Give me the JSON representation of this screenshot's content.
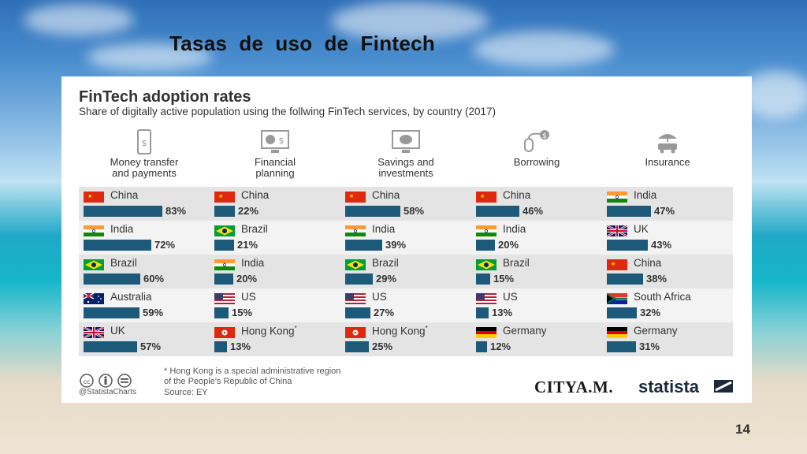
{
  "slide": {
    "title": "Tasas  de  uso  de  Fintech",
    "page_number": "14"
  },
  "chart_data": {
    "type": "bar",
    "title": "FinTech adoption rates",
    "subtitle": "Share of digitally active population using the follwing FinTech services, by country (2017)",
    "categories_by_panel": true,
    "panels": [
      {
        "name": "Money transfer\nand payments",
        "icon": "phone-payment-icon",
        "entries": [
          {
            "country": "China",
            "value": 83,
            "label": "83%"
          },
          {
            "country": "India",
            "value": 72,
            "label": "72%"
          },
          {
            "country": "Brazil",
            "value": 60,
            "label": "60%"
          },
          {
            "country": "Australia",
            "value": 59,
            "label": "59%"
          },
          {
            "country": "UK",
            "value": 57,
            "label": "57%"
          }
        ]
      },
      {
        "name": "Financial\nplanning",
        "icon": "chart-screen-icon",
        "entries": [
          {
            "country": "China",
            "value": 22,
            "label": "22%"
          },
          {
            "country": "Brazil",
            "value": 21,
            "label": "21%"
          },
          {
            "country": "India",
            "value": 20,
            "label": "20%"
          },
          {
            "country": "US",
            "value": 15,
            "label": "15%"
          },
          {
            "country": "Hong Kong",
            "value": 13,
            "label": "13%",
            "marker": "*"
          }
        ]
      },
      {
        "name": "Savings and\ninvestments",
        "icon": "piggy-bank-icon",
        "entries": [
          {
            "country": "China",
            "value": 58,
            "label": "58%"
          },
          {
            "country": "India",
            "value": 39,
            "label": "39%"
          },
          {
            "country": "Brazil",
            "value": 29,
            "label": "29%"
          },
          {
            "country": "US",
            "value": 27,
            "label": "27%"
          },
          {
            "country": "Hong Kong",
            "value": 25,
            "label": "25%",
            "marker": "*"
          }
        ]
      },
      {
        "name": "Borrowing",
        "icon": "mouse-dollar-icon",
        "entries": [
          {
            "country": "China",
            "value": 46,
            "label": "46%"
          },
          {
            "country": "India",
            "value": 20,
            "label": "20%"
          },
          {
            "country": "Brazil",
            "value": 15,
            "label": "15%"
          },
          {
            "country": "US",
            "value": 13,
            "label": "13%"
          },
          {
            "country": "Germany",
            "value": 12,
            "label": "12%"
          }
        ]
      },
      {
        "name": "Insurance",
        "icon": "umbrella-car-icon",
        "entries": [
          {
            "country": "India",
            "value": 47,
            "label": "47%"
          },
          {
            "country": "UK",
            "value": 43,
            "label": "43%"
          },
          {
            "country": "China",
            "value": 38,
            "label": "38%"
          },
          {
            "country": "South Africa",
            "value": 32,
            "label": "32%"
          },
          {
            "country": "Germany",
            "value": 31,
            "label": "31%"
          }
        ]
      }
    ],
    "bar_color": "#1d5a7a"
  },
  "footer": {
    "handle": "@StatistaCharts",
    "note": "* Hong Kong is a special administrative region\n  of the People's Republic of China",
    "source": "Source: EY",
    "brand1": "CITYA.M.",
    "brand2": "statista"
  }
}
